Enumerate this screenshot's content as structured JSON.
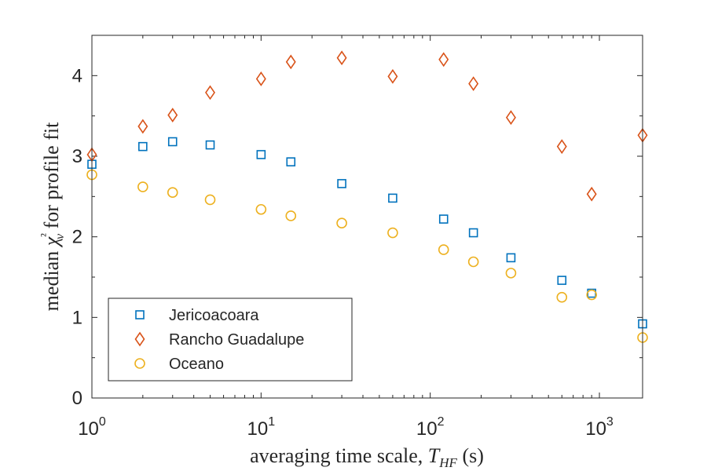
{
  "chart_data": {
    "type": "scatter",
    "xlabel": "averaging time scale, T_HF (s)",
    "ylabel": "median χ²_ν for profile fit",
    "xscale": "log",
    "xlim": [
      1,
      1800
    ],
    "ylim": [
      0,
      4.5
    ],
    "x_ticks": [
      {
        "base": "10",
        "exp": "0"
      },
      {
        "base": "10",
        "exp": "1"
      },
      {
        "base": "10",
        "exp": "2"
      },
      {
        "base": "10",
        "exp": "3"
      }
    ],
    "y_ticks": [
      "0",
      "1",
      "2",
      "3",
      "4"
    ],
    "grid": false,
    "legend_position": "bottom-left",
    "series": [
      {
        "name": "Jericoacoara",
        "marker": "square",
        "color": "#0072BD",
        "x": [
          1,
          2,
          3,
          5,
          10,
          15,
          30,
          60,
          120,
          180,
          300,
          600,
          900,
          1800
        ],
        "y": [
          2.9,
          3.12,
          3.18,
          3.14,
          3.02,
          2.93,
          2.66,
          2.48,
          2.22,
          2.05,
          1.74,
          1.46,
          1.3,
          0.92
        ]
      },
      {
        "name": "Rancho Guadalupe",
        "marker": "diamond",
        "color": "#D95319",
        "x": [
          1,
          2,
          3,
          5,
          10,
          15,
          30,
          60,
          120,
          180,
          300,
          600,
          900,
          1800
        ],
        "y": [
          3.02,
          3.37,
          3.51,
          3.79,
          3.96,
          4.17,
          4.22,
          3.99,
          4.2,
          3.9,
          3.48,
          3.12,
          2.53,
          3.26
        ]
      },
      {
        "name": "Oceano",
        "marker": "circle",
        "color": "#EDB120",
        "x": [
          1,
          2,
          3,
          5,
          10,
          15,
          30,
          60,
          120,
          180,
          300,
          600,
          900,
          1800
        ],
        "y": [
          2.77,
          2.62,
          2.55,
          2.46,
          2.34,
          2.26,
          2.17,
          2.05,
          1.84,
          1.69,
          1.55,
          1.25,
          1.28,
          0.75
        ]
      }
    ]
  }
}
